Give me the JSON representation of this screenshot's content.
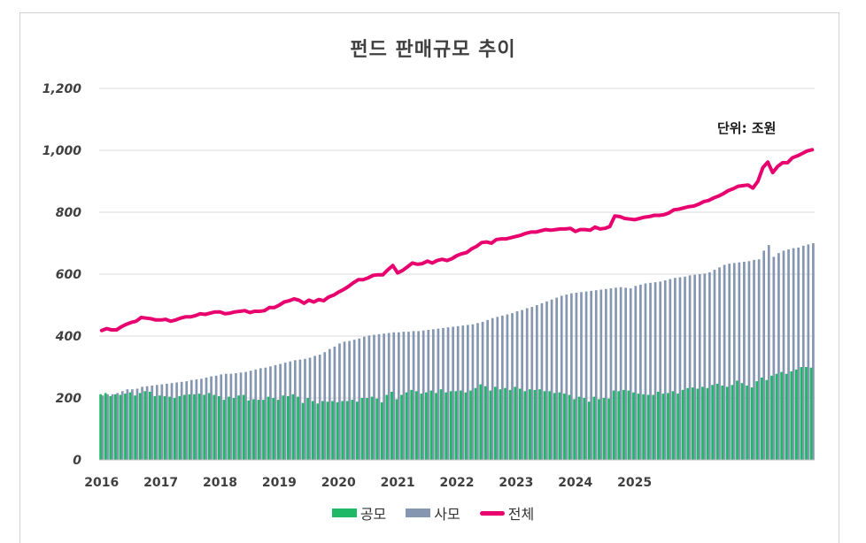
{
  "chart_data": {
    "type": "bar",
    "title": "펀드 판매규모 추이",
    "unit_label": "단위: 조원",
    "xlabel": "",
    "ylabel": "",
    "ylim": [
      0,
      1200
    ],
    "y_ticks": [
      "0",
      "200",
      "400",
      "600",
      "800",
      "1,000",
      "1,200"
    ],
    "y_tick_values": [
      0,
      200,
      400,
      600,
      800,
      1000,
      1200
    ],
    "x_tick_labels": [
      "2016",
      "2017",
      "2018",
      "2019",
      "2020",
      "2021",
      "2022",
      "2023",
      "2024",
      "2025"
    ],
    "grid": true,
    "legend_position": "bottom",
    "colors": {
      "public": "#1fb866",
      "private": "#8496b0",
      "total": "#e8006e"
    },
    "series": [
      {
        "name": "공모",
        "kind": "bar",
        "values": [
          212,
          216,
          206,
          212,
          210,
          214,
          218,
          208,
          216,
          222,
          220,
          206,
          208,
          206,
          204,
          200,
          206,
          210,
          212,
          212,
          214,
          210,
          216,
          210,
          206,
          194,
          204,
          200,
          208,
          210,
          192,
          196,
          194,
          194,
          204,
          200,
          194,
          208,
          206,
          212,
          204,
          184,
          200,
          190,
          182,
          190,
          188,
          190,
          186,
          190,
          190,
          194,
          188,
          200,
          200,
          204,
          198,
          186,
          210,
          220,
          196,
          210,
          218,
          226,
          222,
          214,
          218,
          224,
          216,
          228,
          218,
          222,
          222,
          224,
          218,
          224,
          232,
          244,
          238,
          224,
          236,
          228,
          232,
          226,
          236,
          230,
          222,
          228,
          226,
          228,
          222,
          222,
          216,
          218,
          214,
          210,
          196,
          204,
          200,
          188,
          204,
          196,
          200,
          198,
          224,
          222,
          226,
          224,
          218,
          214,
          212,
          210,
          210,
          220,
          214,
          216,
          222,
          214,
          226,
          232,
          234,
          230,
          236,
          232,
          242,
          246,
          240,
          236,
          242,
          256,
          248,
          240,
          234,
          254,
          266,
          258,
          272,
          278,
          284,
          278,
          286,
          292,
          300,
          300,
          298
        ]
      },
      {
        "name": "사모",
        "kind": "bar",
        "values": [
          208,
          212,
          212,
          216,
          222,
          228,
          228,
          230,
          236,
          238,
          240,
          242,
          244,
          246,
          248,
          250,
          252,
          254,
          258,
          260,
          262,
          266,
          270,
          272,
          276,
          278,
          278,
          280,
          282,
          284,
          288,
          292,
          296,
          298,
          302,
          306,
          310,
          314,
          318,
          322,
          324,
          326,
          330,
          336,
          340,
          348,
          358,
          366,
          376,
          382,
          384,
          388,
          392,
          398,
          402,
          404,
          406,
          408,
          410,
          412,
          412,
          414,
          414,
          416,
          416,
          418,
          420,
          422,
          424,
          426,
          428,
          430,
          432,
          434,
          436,
          438,
          442,
          446,
          452,
          458,
          462,
          466,
          470,
          474,
          480,
          484,
          490,
          494,
          500,
          506,
          512,
          518,
          524,
          530,
          534,
          538,
          540,
          542,
          544,
          546,
          548,
          550,
          552,
          554,
          556,
          558,
          556,
          554,
          562,
          566,
          570,
          572,
          574,
          576,
          580,
          584,
          588,
          590,
          592,
          596,
          598,
          600,
          602,
          606,
          614,
          622,
          630,
          634,
          636,
          638,
          640,
          642,
          646,
          648,
          676,
          694,
          656,
          668,
          676,
          680,
          684,
          686,
          692,
          696,
          700
        ]
      },
      {
        "name": "전체",
        "kind": "line",
        "values": [
          418,
          424,
          420,
          420,
          430,
          438,
          444,
          448,
          460,
          458,
          456,
          452,
          452,
          454,
          448,
          452,
          458,
          462,
          462,
          466,
          472,
          470,
          474,
          478,
          478,
          472,
          474,
          478,
          480,
          482,
          476,
          480,
          480,
          482,
          492,
          492,
          500,
          510,
          514,
          520,
          516,
          506,
          516,
          510,
          518,
          514,
          526,
          532,
          542,
          550,
          560,
          572,
          582,
          582,
          588,
          596,
          598,
          598,
          614,
          628,
          604,
          612,
          624,
          636,
          632,
          634,
          642,
          636,
          644,
          648,
          644,
          650,
          660,
          666,
          670,
          682,
          690,
          702,
          704,
          700,
          712,
          714,
          714,
          718,
          722,
          726,
          732,
          736,
          736,
          740,
          744,
          742,
          744,
          746,
          746,
          748,
          738,
          744,
          744,
          742,
          752,
          746,
          748,
          754,
          788,
          786,
          780,
          778,
          776,
          780,
          784,
          786,
          790,
          790,
          792,
          798,
          808,
          810,
          814,
          818,
          820,
          826,
          834,
          838,
          846,
          852,
          860,
          870,
          876,
          884,
          886,
          888,
          878,
          900,
          944,
          962,
          928,
          948,
          960,
          960,
          976,
          982,
          990,
          998,
          1002
        ]
      }
    ]
  }
}
